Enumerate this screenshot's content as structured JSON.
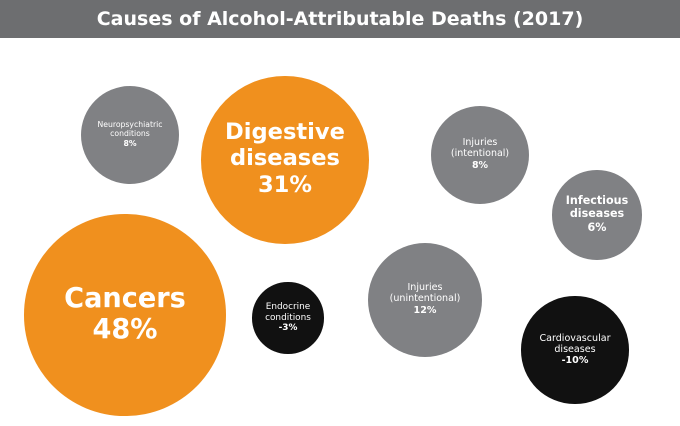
{
  "chart_data": {
    "type": "bubble",
    "title": "Causes of Alcohol-Attributable Deaths (2017)",
    "categories": [
      "Neuropsychiatric conditions",
      "Digestive diseases",
      "Injuries (intentional)",
      "Infectious diseases",
      "Cancers",
      "Endocrine conditions",
      "Injuries (unintentional)",
      "Cardiovascular diseases"
    ],
    "values": [
      8,
      31,
      8,
      6,
      48,
      -3,
      12,
      -10
    ],
    "value_labels": [
      "8%",
      "31%",
      "8%",
      "6%",
      "48%",
      "-3%",
      "12%",
      "-10%"
    ],
    "colors": [
      "#808184",
      "#f0901e",
      "#808184",
      "#808184",
      "#f0901e",
      "#111111",
      "#808184",
      "#111111"
    ]
  }
}
